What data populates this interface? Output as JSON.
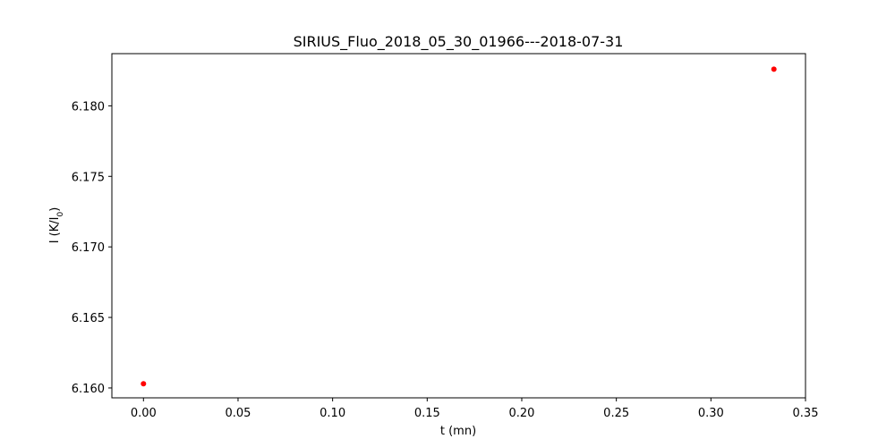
{
  "chart_data": {
    "type": "scatter",
    "title": "SIRIUS_Fluo_2018_05_30_01966---2018-07-31",
    "xlabel": "t (mn)",
    "ylabel_main": "I (K/I",
    "ylabel_sub": "0",
    "ylabel_close": ")",
    "xlim": [
      -0.0167,
      0.35
    ],
    "ylim": [
      6.1593,
      6.1837
    ],
    "xticks": [
      {
        "value": 0.0,
        "label": "0.00"
      },
      {
        "value": 0.05,
        "label": "0.05"
      },
      {
        "value": 0.1,
        "label": "0.10"
      },
      {
        "value": 0.15,
        "label": "0.15"
      },
      {
        "value": 0.2,
        "label": "0.20"
      },
      {
        "value": 0.25,
        "label": "0.25"
      },
      {
        "value": 0.3,
        "label": "0.30"
      },
      {
        "value": 0.35,
        "label": "0.35"
      }
    ],
    "yticks": [
      {
        "value": 6.16,
        "label": "6.160"
      },
      {
        "value": 6.165,
        "label": "6.165"
      },
      {
        "value": 6.17,
        "label": "6.170"
      },
      {
        "value": 6.175,
        "label": "6.175"
      },
      {
        "value": 6.18,
        "label": "6.180"
      }
    ],
    "grid": false,
    "series": [
      {
        "color": "#ff0000",
        "marker": "dot",
        "points": [
          {
            "x": 0.0,
            "y": 6.1603
          },
          {
            "x": 0.3333,
            "y": 6.1826
          }
        ]
      }
    ]
  }
}
